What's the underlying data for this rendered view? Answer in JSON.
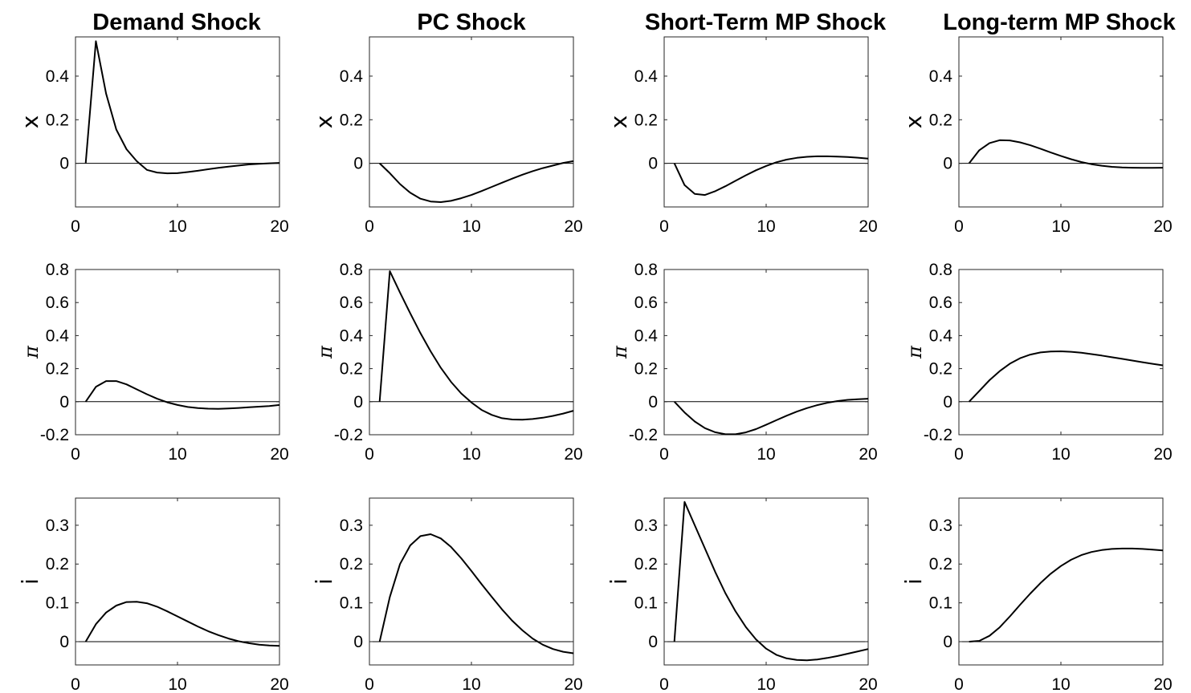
{
  "titles": [
    "Demand Shock",
    "PC Shock",
    "Short-Term MP Shock",
    "Long-term MP Shock"
  ],
  "chart_data": [
    {
      "type": "line",
      "row": 0,
      "ylabel": "x",
      "xlim": [
        0,
        20
      ],
      "ylim": [
        -0.2,
        0.58
      ],
      "xticks": [
        0,
        10,
        20
      ],
      "yticks": [
        0,
        0.2,
        0.4
      ],
      "ytick_labels": [
        "0",
        "0.2",
        "0.4"
      ],
      "x": [
        1,
        2,
        3,
        4,
        5,
        6,
        7,
        8,
        9,
        10,
        11,
        12,
        13,
        14,
        15,
        16,
        17,
        18,
        19,
        20
      ],
      "series": [
        {
          "shock": "Demand Shock",
          "values": [
            0,
            0.56,
            0.32,
            0.155,
            0.065,
            0.01,
            -0.03,
            -0.042,
            -0.046,
            -0.045,
            -0.04,
            -0.034,
            -0.027,
            -0.021,
            -0.015,
            -0.01,
            -0.005,
            -0.002,
            0.0,
            0.002
          ]
        },
        {
          "shock": "PC Shock",
          "values": [
            0,
            -0.045,
            -0.095,
            -0.135,
            -0.162,
            -0.175,
            -0.178,
            -0.172,
            -0.16,
            -0.145,
            -0.127,
            -0.108,
            -0.089,
            -0.07,
            -0.052,
            -0.036,
            -0.022,
            -0.01,
            0.002,
            0.01
          ]
        },
        {
          "shock": "Short-Term MP Shock",
          "values": [
            0,
            -0.1,
            -0.14,
            -0.145,
            -0.128,
            -0.105,
            -0.08,
            -0.055,
            -0.032,
            -0.012,
            0.005,
            0.017,
            0.025,
            0.03,
            0.032,
            0.032,
            0.031,
            0.029,
            0.026,
            0.022
          ]
        },
        {
          "shock": "Long-term MP Shock",
          "values": [
            0,
            0.06,
            0.093,
            0.106,
            0.105,
            0.096,
            0.083,
            0.067,
            0.05,
            0.034,
            0.019,
            0.006,
            -0.004,
            -0.011,
            -0.016,
            -0.019,
            -0.02,
            -0.021,
            -0.021,
            -0.02
          ]
        }
      ]
    },
    {
      "type": "line",
      "row": 1,
      "ylabel": "π",
      "xlim": [
        0,
        20
      ],
      "ylim": [
        -0.2,
        0.8
      ],
      "xticks": [
        0,
        10,
        20
      ],
      "yticks": [
        -0.2,
        0,
        0.2,
        0.4,
        0.6,
        0.8
      ],
      "ytick_labels": [
        "-0.2",
        "0",
        "0.2",
        "0.4",
        "0.6",
        "0.8"
      ],
      "x": [
        1,
        2,
        3,
        4,
        5,
        6,
        7,
        8,
        9,
        10,
        11,
        12,
        13,
        14,
        15,
        16,
        17,
        18,
        19,
        20
      ],
      "series": [
        {
          "shock": "Demand Shock",
          "values": [
            0,
            0.09,
            0.125,
            0.125,
            0.105,
            0.075,
            0.045,
            0.018,
            -0.004,
            -0.02,
            -0.032,
            -0.039,
            -0.042,
            -0.043,
            -0.041,
            -0.038,
            -0.034,
            -0.03,
            -0.026,
            -0.02
          ]
        },
        {
          "shock": "PC Shock",
          "values": [
            0,
            0.79,
            0.66,
            0.535,
            0.415,
            0.305,
            0.205,
            0.12,
            0.05,
            -0.005,
            -0.05,
            -0.08,
            -0.1,
            -0.108,
            -0.109,
            -0.105,
            -0.097,
            -0.086,
            -0.072,
            -0.055
          ]
        },
        {
          "shock": "Short-Term MP Shock",
          "values": [
            0,
            -0.065,
            -0.12,
            -0.16,
            -0.185,
            -0.197,
            -0.197,
            -0.186,
            -0.166,
            -0.14,
            -0.112,
            -0.085,
            -0.06,
            -0.039,
            -0.021,
            -0.007,
            0.004,
            0.011,
            0.015,
            0.018
          ]
        },
        {
          "shock": "Long-term MP Shock",
          "values": [
            0,
            0.065,
            0.13,
            0.185,
            0.23,
            0.263,
            0.285,
            0.298,
            0.304,
            0.305,
            0.302,
            0.296,
            0.288,
            0.279,
            0.269,
            0.259,
            0.249,
            0.239,
            0.229,
            0.22
          ]
        }
      ]
    },
    {
      "type": "line",
      "row": 2,
      "ylabel": "i",
      "xlim": [
        0,
        20
      ],
      "ylim": [
        -0.06,
        0.37
      ],
      "xticks": [
        0,
        10,
        20
      ],
      "yticks": [
        0,
        0.1,
        0.2,
        0.3
      ],
      "ytick_labels": [
        "0",
        "0.1",
        "0.2",
        "0.3"
      ],
      "x": [
        1,
        2,
        3,
        4,
        5,
        6,
        7,
        8,
        9,
        10,
        11,
        12,
        13,
        14,
        15,
        16,
        17,
        18,
        19,
        20
      ],
      "series": [
        {
          "shock": "Demand Shock",
          "values": [
            0,
            0.045,
            0.075,
            0.093,
            0.102,
            0.103,
            0.099,
            0.09,
            0.078,
            0.065,
            0.052,
            0.039,
            0.027,
            0.017,
            0.008,
            0.001,
            -0.004,
            -0.008,
            -0.01,
            -0.011
          ]
        },
        {
          "shock": "PC Shock",
          "values": [
            0,
            0.115,
            0.2,
            0.248,
            0.272,
            0.277,
            0.266,
            0.244,
            0.215,
            0.182,
            0.148,
            0.115,
            0.083,
            0.054,
            0.029,
            0.008,
            -0.008,
            -0.019,
            -0.026,
            -0.03
          ]
        },
        {
          "shock": "Short-Term MP Shock",
          "values": [
            0,
            0.36,
            0.3,
            0.24,
            0.18,
            0.125,
            0.078,
            0.038,
            0.006,
            -0.018,
            -0.034,
            -0.043,
            -0.047,
            -0.048,
            -0.046,
            -0.042,
            -0.037,
            -0.031,
            -0.025,
            -0.019
          ]
        },
        {
          "shock": "Long-term MP Shock",
          "values": [
            0,
            0.002,
            0.015,
            0.037,
            0.065,
            0.095,
            0.124,
            0.151,
            0.175,
            0.195,
            0.211,
            0.223,
            0.231,
            0.236,
            0.239,
            0.24,
            0.24,
            0.239,
            0.237,
            0.235
          ]
        }
      ]
    }
  ]
}
